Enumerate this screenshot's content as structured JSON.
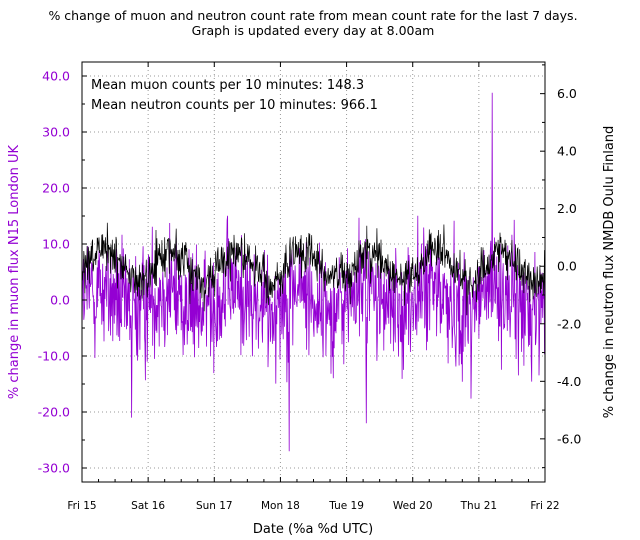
{
  "chart_data": {
    "type": "line",
    "title_lines": [
      "% change of muon and neutron count rate from mean count rate for the last 7 days.",
      "Graph is updated every day at 8.00am"
    ],
    "xlabel": "Date (%a %d UTC)",
    "ylabel_left": "% change in muon flux N15 London UK",
    "ylabel_right": "% change in neutron flux NMDB Oulu Finland",
    "x_categories": [
      "Fri 15",
      "Sat 16",
      "Sun 17",
      "Mon 18",
      "Tue 19",
      "Wed 20",
      "Thu 21",
      "Fri 22"
    ],
    "xlim_days": [
      0,
      7
    ],
    "ylim_left": [
      -32.5,
      42.5
    ],
    "ylim_right": [
      -7.5,
      7.1
    ],
    "y_ticks_left": [
      40,
      30,
      20,
      10,
      0,
      -10,
      -20,
      -30
    ],
    "y_tick_labels_left": [
      "40.0",
      "30.0",
      "20.0",
      "10.0",
      "0.0",
      "-10.0",
      "-20.0",
      "-30.0"
    ],
    "y_ticks_right": [
      6,
      4,
      2,
      0,
      -2,
      -4,
      -6
    ],
    "y_tick_labels_right": [
      "6.0",
      "4.0",
      "2.0",
      "0.0",
      "-2.0",
      "-4.0",
      "-6.0"
    ],
    "grid": "dotted",
    "annotations": [
      "Mean muon counts per 10 minutes: 148.3",
      "Mean neutron counts per 10 minutes: 966.1"
    ],
    "series": [
      {
        "name": "muon",
        "axis": "left",
        "color": "#9400d3",
        "samples_per_day": 144,
        "approx_mean": 0.0,
        "approx_range": [
          -27.0,
          37.0
        ],
        "notable_points": [
          {
            "day": 6.2,
            "value": 37.0
          },
          {
            "day": 3.13,
            "value": -27.0
          },
          {
            "day": 4.3,
            "value": -22.0
          },
          {
            "day": 0.75,
            "value": -21.0
          }
        ]
      },
      {
        "name": "neutron",
        "axis": "right",
        "color": "#000000",
        "samples_per_day": 144,
        "approx_mean": 0.0,
        "approx_range": [
          -2.2,
          2.2
        ]
      }
    ]
  }
}
